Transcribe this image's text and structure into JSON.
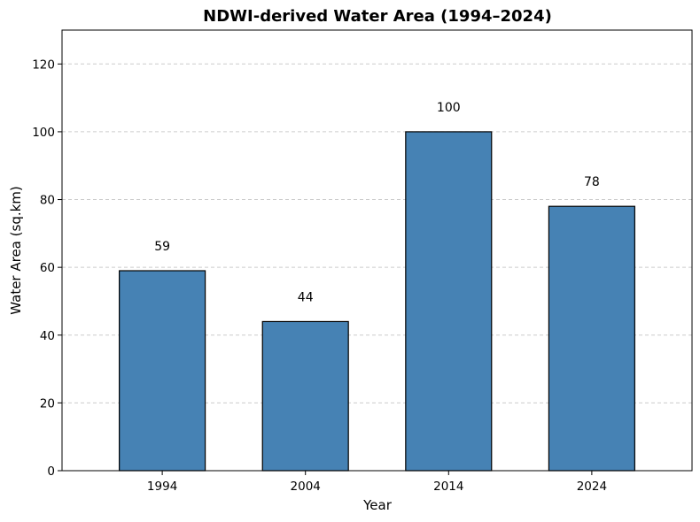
{
  "chart_data": {
    "type": "bar",
    "title": "NDWI-derived Water Area (1994–2024)",
    "xlabel": "Year",
    "ylabel": "Water Area (sq.km)",
    "categories": [
      "1994",
      "2004",
      "2014",
      "2024"
    ],
    "values": [
      59,
      44,
      100,
      78
    ],
    "data_labels": [
      "59",
      "44",
      "100",
      "78"
    ],
    "ylim": [
      0,
      130
    ],
    "yticks": [
      0,
      20,
      40,
      60,
      80,
      100,
      120
    ],
    "grid": "y-dashed",
    "legend": "none",
    "bar_color": "#4682b4",
    "bar_edge_color": "#000000"
  }
}
